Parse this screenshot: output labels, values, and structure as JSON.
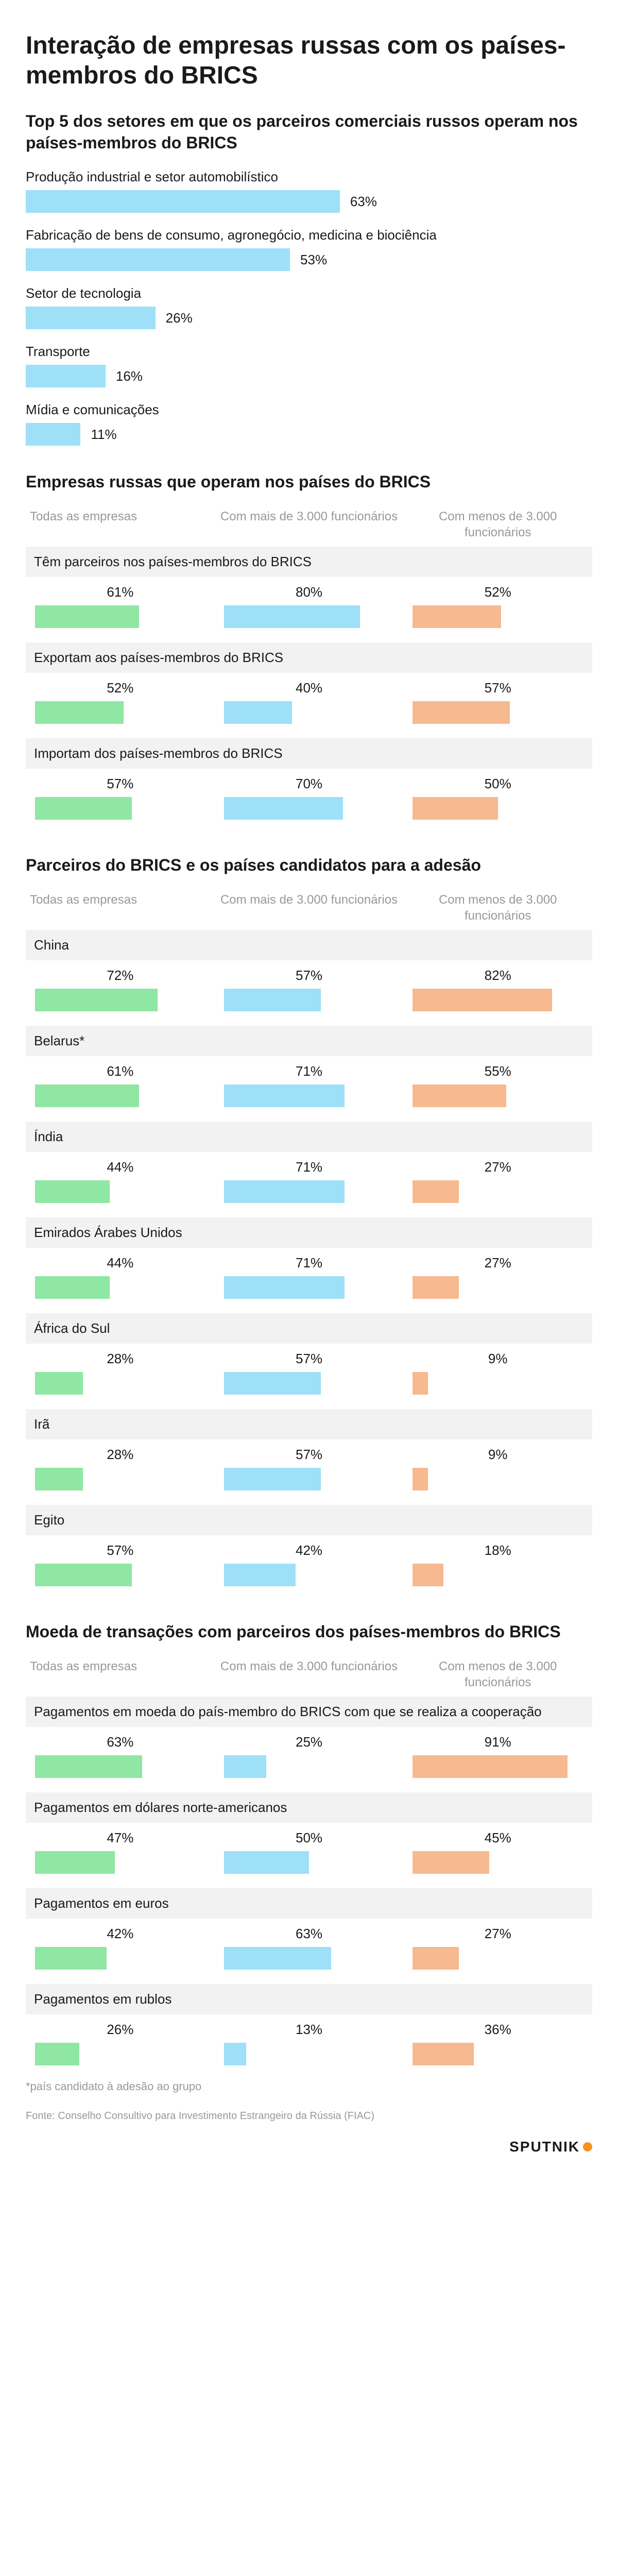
{
  "colors": {
    "text": "#1a1a1a",
    "muted": "#999999",
    "header_bg": "#f2f2f2",
    "blue": "#9de0f7",
    "green": "#8fe7a3",
    "orange": "#f7b98f",
    "logo_dot": "#f7941e"
  },
  "main_title": "Interação de empresas russas com os países-membros do BRICS",
  "sectors": {
    "subtitle": "Top 5 dos setores em que os parceiros comerciais russos operam nos países-membros do BRICS",
    "bar_color": "#9de0f7",
    "max_pct": 100,
    "track_width_pct": 88,
    "items": [
      {
        "label": "Produção industrial e setor automobilístico",
        "pct": 63
      },
      {
        "label": "Fabricação de bens de consumo, agronegócio, medicina e biociência",
        "pct": 53
      },
      {
        "label": "Setor de tecnologia",
        "pct": 26
      },
      {
        "label": "Transporte",
        "pct": 16
      },
      {
        "label": "Mídia e comunicações",
        "pct": 11
      }
    ]
  },
  "column_headers": [
    "Todas as empresas",
    "Com mais de 3.000 funcionários",
    "Com menos de 3.000 funcionários"
  ],
  "column_colors": [
    "#8fe7a3",
    "#9de0f7",
    "#f7b98f"
  ],
  "sections": [
    {
      "title": "Empresas russas que operam nos países do BRICS",
      "rows": [
        {
          "label": "Têm parceiros nos países-membros do BRICS",
          "values": [
            61,
            80,
            52
          ]
        },
        {
          "label": "Exportam aos países-membros do BRICS",
          "values": [
            52,
            40,
            57
          ]
        },
        {
          "label": "Importam dos países-membros do BRICS",
          "values": [
            57,
            70,
            50
          ]
        }
      ]
    },
    {
      "title": "Parceiros do BRICS e os países candidatos para a adesão",
      "rows": [
        {
          "label": "China",
          "values": [
            72,
            57,
            82
          ]
        },
        {
          "label": "Belarus*",
          "values": [
            61,
            71,
            55
          ]
        },
        {
          "label": "Índia",
          "values": [
            44,
            71,
            27
          ]
        },
        {
          "label": "Emirados Árabes Unidos",
          "values": [
            44,
            71,
            27
          ]
        },
        {
          "label": "África do Sul",
          "values": [
            28,
            57,
            9
          ]
        },
        {
          "label": "Irã",
          "values": [
            28,
            57,
            9
          ]
        },
        {
          "label": "Egito",
          "values": [
            57,
            42,
            18
          ]
        }
      ]
    },
    {
      "title": "Moeda de transações com parceiros dos países-membros do BRICS",
      "rows": [
        {
          "label": "Pagamentos em moeda do país-membro do BRICS com que se realiza a cooperação",
          "values": [
            63,
            25,
            91
          ]
        },
        {
          "label": "Pagamentos em dólares norte-americanos",
          "values": [
            47,
            50,
            45
          ]
        },
        {
          "label": "Pagamentos em euros",
          "values": [
            42,
            63,
            27
          ]
        },
        {
          "label": "Pagamentos em rublos",
          "values": [
            26,
            13,
            36
          ]
        }
      ]
    }
  ],
  "footnote": "*país candidato à adesão ao grupo",
  "source": "Fonte: Conselho Consultivo para Investimento Estrangeiro da Rússia (FIAC)",
  "logo_text": "SPUTNIK"
}
